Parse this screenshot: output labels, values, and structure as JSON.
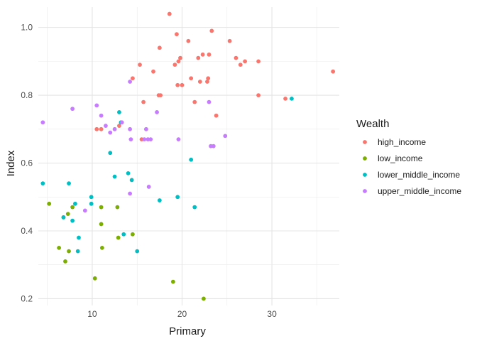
{
  "chart_data": {
    "type": "scatter",
    "xlabel": "Primary",
    "ylabel": "Index",
    "xlim": [
      4,
      37.5
    ],
    "ylim": [
      0.18,
      1.06
    ],
    "x_ticks": [
      10,
      20,
      30
    ],
    "x_minor_ticks": [
      5,
      15,
      25,
      35
    ],
    "y_ticks": [
      0.2,
      0.4,
      0.6,
      0.8,
      1.0
    ],
    "y_tick_labels": [
      "0.2",
      "0.4",
      "0.6",
      "0.8",
      "1.0"
    ],
    "y_minor_ticks": [
      0.3,
      0.5,
      0.7,
      0.9
    ],
    "grid": true,
    "legend": {
      "title": "Wealth",
      "position": "right"
    },
    "series": [
      {
        "name": "high_income",
        "color": "#F8766D",
        "points": [
          [
            18.6,
            1.04
          ],
          [
            19.4,
            0.98
          ],
          [
            23.3,
            0.99
          ],
          [
            20.7,
            0.96
          ],
          [
            25.3,
            0.96
          ],
          [
            17.5,
            0.94
          ],
          [
            21.8,
            0.91
          ],
          [
            22.3,
            0.92
          ],
          [
            23.0,
            0.92
          ],
          [
            26.0,
            0.91
          ],
          [
            26.5,
            0.89
          ],
          [
            27.0,
            0.9
          ],
          [
            28.5,
            0.9
          ],
          [
            36.8,
            0.87
          ],
          [
            19.8,
            0.91
          ],
          [
            19.6,
            0.9
          ],
          [
            19.2,
            0.89
          ],
          [
            15.3,
            0.89
          ],
          [
            16.8,
            0.87
          ],
          [
            14.5,
            0.85
          ],
          [
            22.8,
            0.84
          ],
          [
            21.0,
            0.85
          ],
          [
            22.0,
            0.84
          ],
          [
            22.9,
            0.85
          ],
          [
            19.5,
            0.83
          ],
          [
            20.0,
            0.83
          ],
          [
            17.4,
            0.8
          ],
          [
            17.6,
            0.8
          ],
          [
            28.5,
            0.8
          ],
          [
            31.5,
            0.79
          ],
          [
            15.7,
            0.78
          ],
          [
            21.4,
            0.78
          ],
          [
            23.8,
            0.74
          ],
          [
            15.5,
            0.67
          ],
          [
            10.5,
            0.7
          ],
          [
            11.0,
            0.7
          ],
          [
            13.0,
            0.71
          ]
        ]
      },
      {
        "name": "low_income",
        "color": "#7CAE00",
        "points": [
          [
            5.2,
            0.48
          ],
          [
            6.8,
            0.44
          ],
          [
            7.3,
            0.45
          ],
          [
            7.8,
            0.47
          ],
          [
            11.0,
            0.47
          ],
          [
            12.8,
            0.47
          ],
          [
            14.5,
            0.39
          ],
          [
            12.9,
            0.38
          ],
          [
            11.0,
            0.42
          ],
          [
            6.3,
            0.35
          ],
          [
            7.4,
            0.34
          ],
          [
            11.1,
            0.35
          ],
          [
            7.0,
            0.31
          ],
          [
            10.3,
            0.26
          ],
          [
            19.0,
            0.25
          ],
          [
            22.4,
            0.2
          ]
        ]
      },
      {
        "name": "lower_middle_income",
        "color": "#00BFC4",
        "points": [
          [
            4.5,
            0.54
          ],
          [
            7.4,
            0.54
          ],
          [
            12.0,
            0.63
          ],
          [
            13.0,
            0.75
          ],
          [
            13.2,
            0.72
          ],
          [
            14.0,
            0.57
          ],
          [
            12.5,
            0.56
          ],
          [
            14.4,
            0.55
          ],
          [
            21.0,
            0.61
          ],
          [
            19.5,
            0.5
          ],
          [
            17.5,
            0.49
          ],
          [
            21.4,
            0.47
          ],
          [
            9.9,
            0.5
          ],
          [
            9.9,
            0.48
          ],
          [
            8.1,
            0.48
          ],
          [
            6.8,
            0.44
          ],
          [
            7.8,
            0.43
          ],
          [
            8.5,
            0.38
          ],
          [
            13.5,
            0.39
          ],
          [
            8.4,
            0.34
          ],
          [
            15.0,
            0.34
          ],
          [
            32.2,
            0.79
          ]
        ]
      },
      {
        "name": "upper_middle_income",
        "color": "#C77CFF",
        "points": [
          [
            4.5,
            0.72
          ],
          [
            7.8,
            0.76
          ],
          [
            10.5,
            0.77
          ],
          [
            11.0,
            0.74
          ],
          [
            11.5,
            0.71
          ],
          [
            12.0,
            0.69
          ],
          [
            12.5,
            0.7
          ],
          [
            13.3,
            0.72
          ],
          [
            14.2,
            0.84
          ],
          [
            14.2,
            0.7
          ],
          [
            14.3,
            0.67
          ],
          [
            15.8,
            0.67
          ],
          [
            16.0,
            0.7
          ],
          [
            16.2,
            0.67
          ],
          [
            16.5,
            0.67
          ],
          [
            17.2,
            0.75
          ],
          [
            19.6,
            0.67
          ],
          [
            23.0,
            0.78
          ],
          [
            23.2,
            0.65
          ],
          [
            23.5,
            0.65
          ],
          [
            24.8,
            0.68
          ],
          [
            16.3,
            0.53
          ],
          [
            14.2,
            0.51
          ],
          [
            9.2,
            0.46
          ]
        ]
      }
    ]
  }
}
